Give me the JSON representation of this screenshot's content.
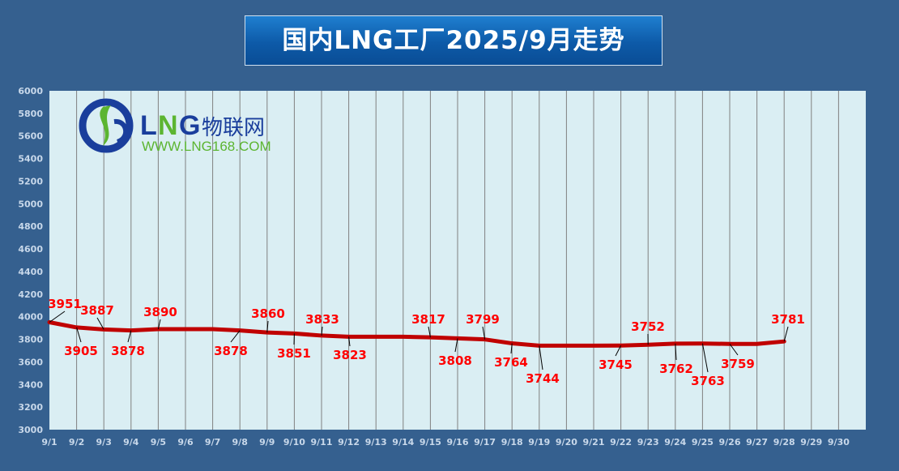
{
  "chart_data": {
    "type": "line",
    "title": "国内LNG工厂2025/9月走势",
    "xlabel": "",
    "ylabel": "",
    "ylim": [
      3000,
      6000
    ],
    "yticks": [
      3000,
      3200,
      3400,
      3600,
      3800,
      4000,
      4200,
      4400,
      4600,
      4800,
      5000,
      5200,
      5400,
      5600,
      5800,
      6000
    ],
    "categories": [
      "9/1",
      "9/2",
      "9/3",
      "9/4",
      "9/5",
      "9/6",
      "9/7",
      "9/8",
      "9/9",
      "9/10",
      "9/11",
      "9/12",
      "9/13",
      "9/14",
      "9/15",
      "9/16",
      "9/17",
      "9/18",
      "9/19",
      "9/20",
      "9/21",
      "9/22",
      "9/23",
      "9/24",
      "9/25",
      "9/26",
      "9/27",
      "9/28",
      "9/29",
      "9/30"
    ],
    "series": [
      {
        "name": "国内LNG工厂",
        "color": "#c00000",
        "values": [
          3951,
          3905,
          3887,
          3878,
          3890,
          3890,
          3890,
          3878,
          3860,
          3851,
          3833,
          3823,
          3823,
          3823,
          3817,
          3808,
          3799,
          3764,
          3744,
          3744,
          3744,
          3745,
          3752,
          3762,
          3763,
          3759,
          3759,
          3781,
          null,
          null
        ],
        "labels": [
          "3951",
          "3905",
          "3887",
          "3878",
          "3890",
          null,
          null,
          "3878",
          "3860",
          "3851",
          "3833",
          "3823",
          null,
          null,
          "3817",
          "3808",
          "3799",
          "3764",
          "3744",
          null,
          null,
          "3745",
          "3752",
          "3762",
          "3763",
          "3759",
          null,
          "3781",
          null,
          null
        ]
      }
    ],
    "grid": "vertical",
    "plot_bg": "#daeef3",
    "label_color": "#ff0000"
  },
  "logo": {
    "brand": "LNG物联网",
    "url": "WWW.LNG168.COM"
  }
}
